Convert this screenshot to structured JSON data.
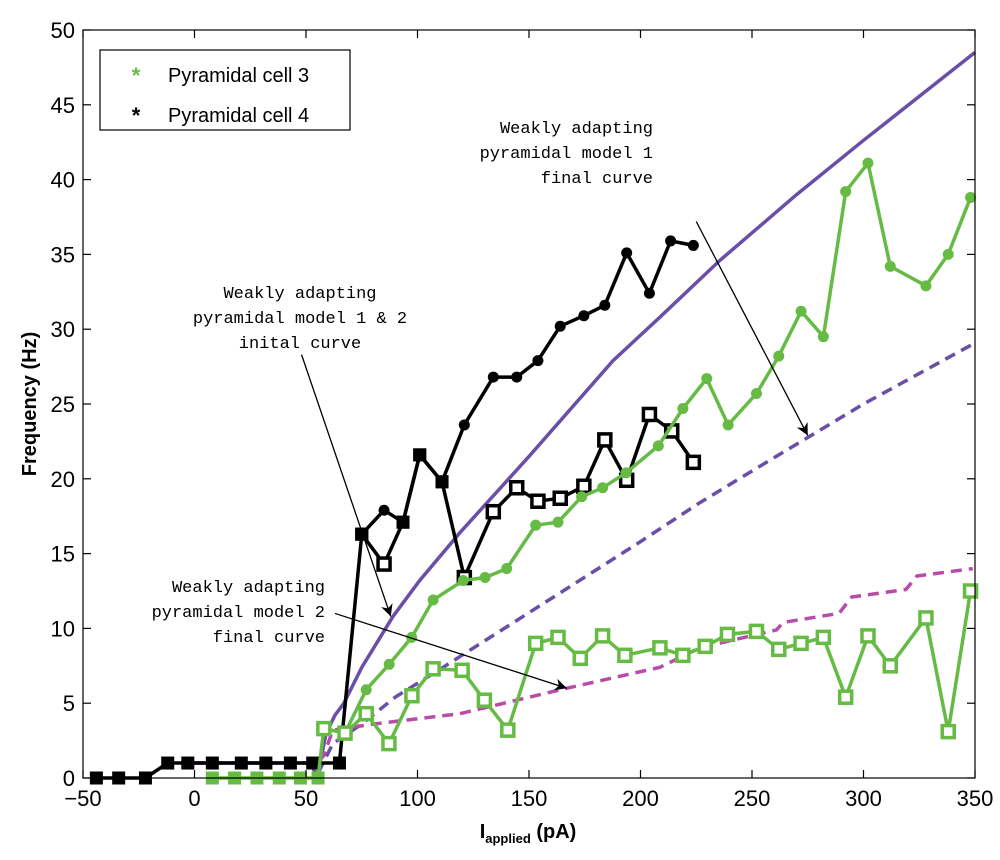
{
  "chart_data": {
    "type": "line",
    "xlabel_main": "I",
    "xlabel_sub": "applied",
    "xlabel_unit": " (pA)",
    "ylabel": "Frequency (Hz)",
    "xlim": [
      -50,
      350
    ],
    "ylim": [
      0,
      50
    ],
    "xticks": [
      -50,
      0,
      50,
      100,
      150,
      200,
      250,
      300,
      350
    ],
    "xtick_labels": [
      "−50",
      "0",
      "50",
      "100",
      "150",
      "200",
      "250",
      "300",
      "350"
    ],
    "yticks": [
      0,
      5,
      10,
      15,
      20,
      25,
      30,
      35,
      40,
      45,
      50
    ],
    "ytick_labels": [
      "0",
      "5",
      "10",
      "15",
      "20",
      "25",
      "30",
      "35",
      "40",
      "45",
      "50"
    ],
    "grid": false,
    "legend": {
      "placement": "top-left",
      "entries": [
        {
          "label": "Pyramidal cell 3",
          "color": "#66bb44"
        },
        {
          "label": "Pyramidal cell 4",
          "color": "#000000"
        }
      ]
    },
    "colors": {
      "green": "#66bb44",
      "black": "#000000",
      "purple": "#6a4fa8",
      "magenta": "#b84ca8"
    },
    "experimental": [
      {
        "name": "Pyramidal cell 4 (low current)",
        "color": "#000000",
        "points": [
          [
            -44,
            0,
            "fs"
          ],
          [
            -34,
            0,
            "fs"
          ],
          [
            -22,
            0,
            "fs"
          ],
          [
            -12,
            1,
            "fs"
          ],
          [
            -3,
            1,
            "fs"
          ],
          [
            8,
            1,
            "fs"
          ],
          [
            21,
            1,
            "fs"
          ],
          [
            32,
            1,
            "fs"
          ],
          [
            43,
            1,
            "fs"
          ],
          [
            53,
            1,
            "fs"
          ],
          [
            65,
            1,
            "fs"
          ],
          [
            75,
            16.3,
            "fs"
          ]
        ]
      },
      {
        "name": "Pyramidal cell 4 (trace A)",
        "color": "#000000",
        "points": [
          [
            75,
            16.3,
            "fs"
          ],
          [
            85,
            17.9,
            "c"
          ],
          [
            93.5,
            17.1,
            "fs"
          ],
          [
            101,
            21.6,
            "fs"
          ],
          [
            111,
            19.8,
            "fs"
          ],
          [
            121,
            23.6,
            "c"
          ],
          [
            134,
            26.8,
            "c"
          ],
          [
            144.5,
            26.8,
            "c"
          ],
          [
            154,
            27.9,
            "c"
          ],
          [
            164,
            30.2,
            "c"
          ],
          [
            174.6,
            30.9,
            "c"
          ],
          [
            184,
            31.6,
            "c"
          ],
          [
            193.8,
            35.1,
            "c"
          ],
          [
            204,
            32.4,
            "c"
          ],
          [
            213.5,
            35.9,
            "c"
          ],
          [
            223.7,
            35.6,
            "c"
          ]
        ]
      },
      {
        "name": "Pyramidal cell 4 (trace B)",
        "color": "#000000",
        "points": [
          [
            75,
            16.3,
            "fs"
          ],
          [
            85,
            14.3,
            "os"
          ],
          [
            93.5,
            17.1,
            "fs"
          ],
          [
            101,
            21.6,
            "fs"
          ],
          [
            111,
            19.8,
            "fs"
          ],
          [
            121,
            13.4,
            "os"
          ],
          [
            134,
            17.8,
            "os"
          ],
          [
            144.5,
            19.4,
            "os"
          ],
          [
            154,
            18.5,
            "os"
          ],
          [
            164,
            18.7,
            "os"
          ],
          [
            174.6,
            19.5,
            "os"
          ],
          [
            184,
            22.6,
            "os"
          ],
          [
            193.8,
            19.9,
            "os"
          ],
          [
            204,
            24.3,
            "os"
          ],
          [
            214,
            23.2,
            "os"
          ],
          [
            223.7,
            21.1,
            "os"
          ]
        ]
      },
      {
        "name": "Pyramidal cell 3 (trace A)",
        "color": "#66bb44",
        "points": [
          [
            67.5,
            3.0,
            "c"
          ],
          [
            77,
            5.9,
            "c"
          ],
          [
            87.3,
            7.6,
            "c"
          ],
          [
            97.4,
            9.4,
            "c"
          ],
          [
            107,
            11.9,
            "c"
          ],
          [
            120.5,
            13.2,
            "c"
          ],
          [
            130.3,
            13.4,
            "c"
          ],
          [
            140,
            14.0,
            "c"
          ],
          [
            153,
            16.9,
            "c"
          ],
          [
            163,
            17.1,
            "c"
          ],
          [
            173.6,
            18.8,
            "c"
          ],
          [
            183,
            19.4,
            "c"
          ],
          [
            193.5,
            20.4,
            "c"
          ],
          [
            208,
            22.2,
            "c"
          ],
          [
            219,
            24.7,
            "c"
          ],
          [
            229.7,
            26.7,
            "c"
          ],
          [
            239.3,
            23.6,
            "c"
          ],
          [
            252,
            25.7,
            "c"
          ],
          [
            262,
            28.2,
            "c"
          ],
          [
            272,
            31.2,
            "c"
          ],
          [
            282,
            29.5,
            "c"
          ],
          [
            292,
            39.2,
            "c"
          ],
          [
            302,
            41.1,
            "c"
          ],
          [
            312,
            34.2,
            "c"
          ],
          [
            328,
            32.9,
            "c"
          ],
          [
            338,
            35.0,
            "c"
          ],
          [
            348,
            38.8,
            "c"
          ]
        ]
      },
      {
        "name": "Pyramidal cell 3 (trace B)",
        "color": "#66bb44",
        "points": [
          [
            8,
            0,
            "fs"
          ],
          [
            18,
            0,
            "fs"
          ],
          [
            28,
            0,
            "fs"
          ],
          [
            38,
            0,
            "fs"
          ],
          [
            47.5,
            0,
            "fs"
          ],
          [
            55.4,
            0,
            "fs"
          ],
          [
            58,
            3.3,
            "os"
          ],
          [
            67.5,
            3.0,
            "os"
          ],
          [
            77,
            4.3,
            "os"
          ],
          [
            87.2,
            2.3,
            "os"
          ],
          [
            97.5,
            5.5,
            "os"
          ],
          [
            107,
            7.3,
            "os"
          ],
          [
            120,
            7.2,
            "os"
          ],
          [
            130,
            5.2,
            "os"
          ],
          [
            140.5,
            3.2,
            "os"
          ],
          [
            153,
            9.0,
            "os"
          ],
          [
            163,
            9.4,
            "os"
          ],
          [
            173,
            8.0,
            "os"
          ],
          [
            183,
            9.5,
            "os"
          ],
          [
            193,
            8.2,
            "os"
          ],
          [
            208.7,
            8.7,
            "os"
          ],
          [
            219,
            8.2,
            "os"
          ],
          [
            229,
            8.8,
            "os"
          ],
          [
            239,
            9.6,
            "os"
          ],
          [
            252,
            9.8,
            "os"
          ],
          [
            262,
            8.6,
            "os"
          ],
          [
            272,
            9.0,
            "os"
          ],
          [
            282,
            9.4,
            "os"
          ],
          [
            292,
            5.4,
            "os"
          ],
          [
            302,
            9.5,
            "os"
          ],
          [
            312,
            7.5,
            "os"
          ],
          [
            328,
            10.7,
            "os"
          ],
          [
            338,
            3.1,
            "os"
          ],
          [
            348,
            12.5,
            "os"
          ]
        ]
      }
    ],
    "models": [
      {
        "name": "Weakly adapting pyramidal model 1 & 2 initial curve",
        "color": "#6a4fa8",
        "dashed": false,
        "points": [
          [
            0,
            1
          ],
          [
            52,
            1
          ],
          [
            55,
            0.1
          ],
          [
            57,
            1.5
          ],
          [
            59,
            3
          ],
          [
            63,
            4.2
          ],
          [
            67,
            5
          ],
          [
            75,
            7.4
          ],
          [
            89,
            10.8
          ],
          [
            101,
            13.2
          ],
          [
            119,
            16.4
          ],
          [
            150,
            21.5
          ],
          [
            187.7,
            27.9
          ],
          [
            208.7,
            30.8
          ],
          [
            235.6,
            34.6
          ],
          [
            270,
            39
          ],
          [
            299.8,
            42.6
          ],
          [
            350,
            48.5
          ]
        ]
      },
      {
        "name": "Weakly adapting pyramidal model 1 final curve",
        "color": "#6a4fa8",
        "dashed": true,
        "points": [
          [
            0,
            1
          ],
          [
            53,
            1
          ],
          [
            56,
            0.5
          ],
          [
            62,
            2.3
          ],
          [
            75,
            3.6
          ],
          [
            90,
            5.4
          ],
          [
            111.5,
            7.4
          ],
          [
            122,
            8.4
          ],
          [
            160,
            12
          ],
          [
            200,
            15.8
          ],
          [
            226.6,
            18.4
          ],
          [
            252,
            20.7
          ],
          [
            300,
            25
          ],
          [
            349,
            29
          ]
        ]
      },
      {
        "name": "Weakly adapting pyramidal model 2 final curve",
        "color": "#b84ca8",
        "dashed": true,
        "points": [
          [
            0,
            1
          ],
          [
            55,
            1
          ],
          [
            58,
            1.5
          ],
          [
            62,
            3.2
          ],
          [
            80,
            3.6
          ],
          [
            119,
            4.3
          ],
          [
            167,
            6.0
          ],
          [
            208.7,
            7.4
          ],
          [
            226.6,
            8.7
          ],
          [
            261,
            9.9
          ],
          [
            264,
            10.4
          ],
          [
            289,
            11.0
          ],
          [
            294.7,
            12.1
          ],
          [
            319,
            12.6
          ],
          [
            324,
            13.5
          ],
          [
            349,
            14.0
          ]
        ]
      }
    ],
    "annotations": [
      {
        "lines": [
          "Weakly adapting",
          "pyramidal model 1",
          "final curve"
        ],
        "arrow_from": [
          225,
          37.2
        ],
        "arrow_to": [
          275,
          22.9
        ]
      },
      {
        "lines": [
          "Weakly adapting",
          "pyramidal model 1 & 2",
          "inital curve"
        ],
        "arrow_from": [
          48,
          28.3
        ],
        "arrow_to": [
          88,
          10.8
        ]
      },
      {
        "lines": [
          "Weakly adapting",
          "pyramidal model 2",
          "final curve"
        ],
        "arrow_from": [
          63,
          11
        ],
        "arrow_to": [
          167,
          6.0
        ]
      }
    ]
  }
}
